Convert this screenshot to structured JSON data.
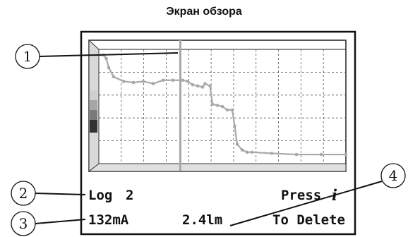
{
  "title": "Экран обзора",
  "screen": {
    "log_label": "Log",
    "log_number": "2",
    "press_label": "Press",
    "info_glyph": "i",
    "current_value": "132mA",
    "lumen_value": "2.4lm",
    "delete_label": "To Delete"
  },
  "callouts": [
    "1",
    "2",
    "3",
    "4"
  ],
  "colors": {
    "trace": "#a8a8a8",
    "cursor": "#a8a8a8",
    "frame": "#111111",
    "grid": "#555555"
  },
  "chart_data": {
    "type": "line",
    "title": "",
    "xlabel": "",
    "ylabel": "",
    "xlim": [
      0,
      100
    ],
    "ylim": [
      0,
      100
    ],
    "grid": true,
    "cursor_x": 33,
    "series": [
      {
        "values": [
          [
            0,
            95
          ],
          [
            2,
            95
          ],
          [
            3,
            92
          ],
          [
            4,
            84
          ],
          [
            6,
            76
          ],
          [
            10,
            72
          ],
          [
            14,
            71
          ],
          [
            18,
            72
          ],
          [
            22,
            70
          ],
          [
            26,
            73
          ],
          [
            30,
            73
          ],
          [
            34,
            73
          ],
          [
            36,
            72
          ],
          [
            38,
            69
          ],
          [
            40,
            68
          ],
          [
            42,
            67
          ],
          [
            43,
            70
          ],
          [
            45,
            68
          ],
          [
            46,
            52
          ],
          [
            48,
            51
          ],
          [
            50,
            50
          ],
          [
            52,
            47
          ],
          [
            54,
            47
          ],
          [
            55,
            33
          ],
          [
            56,
            17
          ],
          [
            58,
            12
          ],
          [
            60,
            10
          ],
          [
            62,
            10
          ],
          [
            70,
            9
          ],
          [
            80,
            8
          ],
          [
            90,
            8
          ],
          [
            100,
            8
          ]
        ]
      }
    ]
  }
}
